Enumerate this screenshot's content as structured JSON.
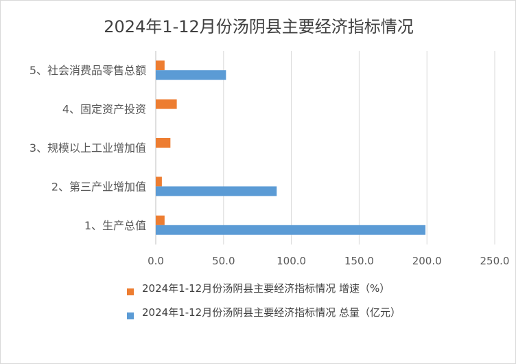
{
  "chart_data": {
    "type": "bar",
    "orientation": "horizontal",
    "title": "2024年1-12月份汤阴县主要经济指标情况",
    "categories": [
      "1、生产总值",
      "2、第三产业增加值",
      "3、规模以上工业增加值",
      "4、固定资产投资",
      "5、社会消费品零售总额"
    ],
    "series": [
      {
        "name": "2024年1-12月份汤阴县主要经济指标情况 增速（%）",
        "color": "#ed7d31",
        "values": [
          6.5,
          4.5,
          10.8,
          15.5,
          6.5
        ]
      },
      {
        "name": "2024年1-12月份汤阴县主要经济指标情况 总量（亿元）",
        "color": "#5b9bd5",
        "values": [
          198.9,
          89.2,
          null,
          null,
          51.8
        ]
      }
    ],
    "xlim": [
      0,
      250
    ],
    "xticks": [
      "0.0",
      "50.0",
      "100.0",
      "150.0",
      "200.0",
      "250.0"
    ],
    "xlabel": "",
    "ylabel": "",
    "grid": true,
    "legend_position": "bottom"
  }
}
